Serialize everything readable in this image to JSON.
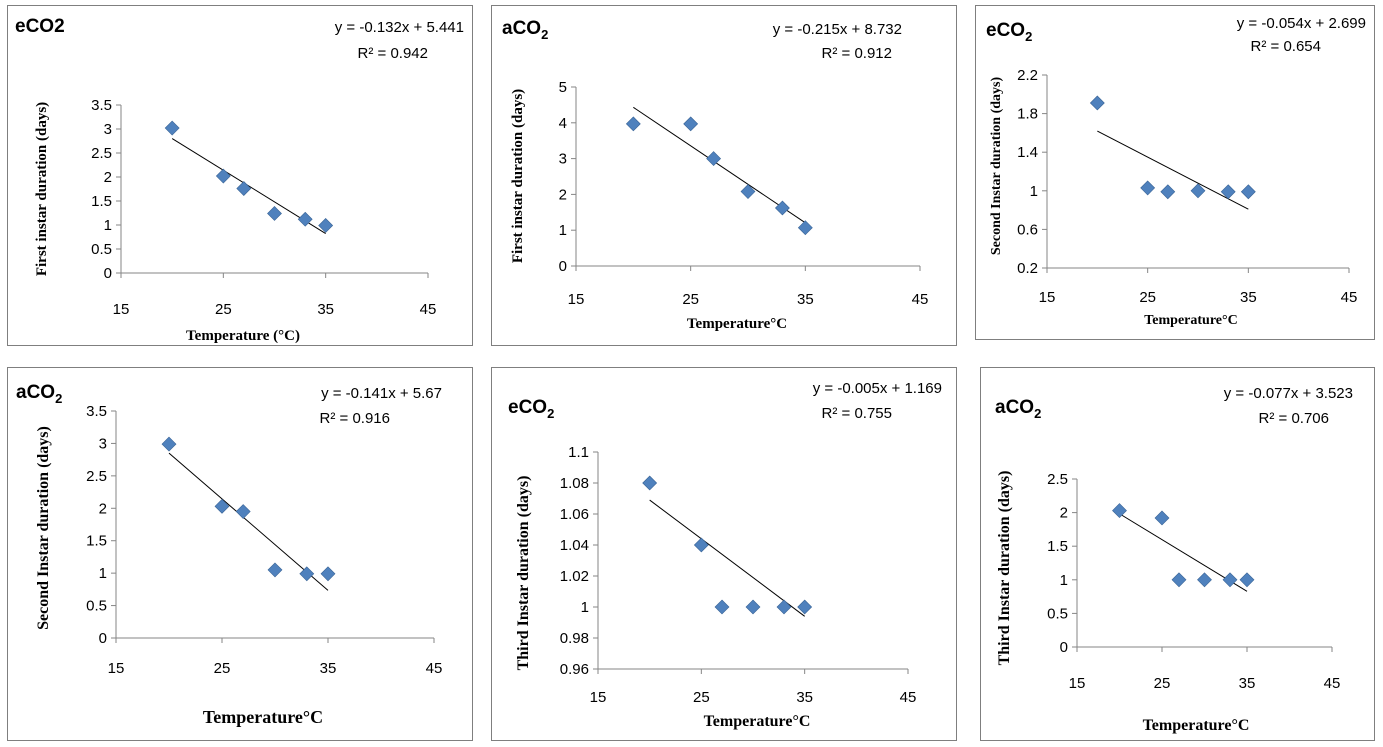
{
  "chart_data": [
    {
      "type": "scatter",
      "title": "eCO2",
      "title_sub": "",
      "equation": "y = -0.132x + 5.441",
      "r2_text": "R² = 0.942",
      "xlabel": "Temperature (°C)",
      "ylabel": "First instar duration (days)",
      "x_ticks": [
        "15",
        "25",
        "35",
        "45"
      ],
      "y_ticks": [
        "0",
        "0.5",
        "1",
        "1.5",
        "2",
        "2.5",
        "3",
        "3.5"
      ],
      "xlim": [
        15,
        45
      ],
      "ylim": [
        0,
        3.5
      ],
      "trend": {
        "slope": -0.132,
        "intercept": 5.441
      },
      "marker_color": "#4f81bd",
      "points": [
        {
          "x": 20,
          "y": 3.02
        },
        {
          "x": 25,
          "y": 2.02
        },
        {
          "x": 27,
          "y": 1.76
        },
        {
          "x": 30,
          "y": 1.24
        },
        {
          "x": 33,
          "y": 1.12
        },
        {
          "x": 35,
          "y": 0.99
        }
      ]
    },
    {
      "type": "scatter",
      "title": "aCO",
      "title_sub": "2",
      "equation": "y = -0.215x + 8.732",
      "r2_text": "R² = 0.912",
      "xlabel": "Temperature°C",
      "ylabel": "First instar duration (days)",
      "x_ticks": [
        "15",
        "25",
        "35",
        "45"
      ],
      "y_ticks": [
        "0",
        "1",
        "2",
        "3",
        "4",
        "5"
      ],
      "xlim": [
        15,
        45
      ],
      "ylim": [
        0,
        5
      ],
      "trend": {
        "slope": -0.215,
        "intercept": 8.732
      },
      "marker_color": "#4f81bd",
      "points": [
        {
          "x": 20,
          "y": 3.97
        },
        {
          "x": 25,
          "y": 3.97
        },
        {
          "x": 27,
          "y": 3.0
        },
        {
          "x": 30,
          "y": 2.08
        },
        {
          "x": 33,
          "y": 1.62
        },
        {
          "x": 35,
          "y": 1.07
        }
      ]
    },
    {
      "type": "scatter",
      "title": "eCO",
      "title_sub": "2",
      "equation": "y = -0.054x + 2.699",
      "r2_text": "R² = 0.654",
      "xlabel": "Temperature°C",
      "ylabel": "Second Instar duration (days)",
      "x_ticks": [
        "15",
        "25",
        "35",
        "45"
      ],
      "y_ticks": [
        "0.2",
        "0.6",
        "1",
        "1.4",
        "1.8",
        "2.2"
      ],
      "xlim": [
        15,
        45
      ],
      "ylim": [
        0.2,
        2.2
      ],
      "trend": {
        "slope": -0.054,
        "intercept": 2.699
      },
      "marker_color": "#4f81bd",
      "points": [
        {
          "x": 20,
          "y": 1.91
        },
        {
          "x": 25,
          "y": 1.03
        },
        {
          "x": 27,
          "y": 0.99
        },
        {
          "x": 30,
          "y": 1.0
        },
        {
          "x": 33,
          "y": 0.99
        },
        {
          "x": 35,
          "y": 0.99
        }
      ]
    },
    {
      "type": "scatter",
      "title": "aCO",
      "title_sub": "2",
      "equation": "y = -0.141x + 5.67",
      "r2_text": "R² = 0.916",
      "xlabel": "Temperature°C",
      "ylabel": "Second Instar duration (days)",
      "x_ticks": [
        "15",
        "25",
        "35",
        "45"
      ],
      "y_ticks": [
        "0",
        "0.5",
        "1",
        "1.5",
        "2",
        "2.5",
        "3",
        "3.5"
      ],
      "xlim": [
        15,
        45
      ],
      "ylim": [
        0,
        3.5
      ],
      "trend": {
        "slope": -0.141,
        "intercept": 5.67
      },
      "marker_color": "#4f81bd",
      "points": [
        {
          "x": 20,
          "y": 2.99
        },
        {
          "x": 25,
          "y": 2.03
        },
        {
          "x": 27,
          "y": 1.95
        },
        {
          "x": 30,
          "y": 1.05
        },
        {
          "x": 33,
          "y": 0.99
        },
        {
          "x": 35,
          "y": 0.99
        }
      ]
    },
    {
      "type": "scatter",
      "title": "eCO",
      "title_sub": "2",
      "equation": "y = -0.005x + 1.169",
      "r2_text": "R² = 0.755",
      "xlabel": "Temperature°C",
      "ylabel": "Third Instar duration (days)",
      "x_ticks": [
        "15",
        "25",
        "35",
        "45"
      ],
      "y_ticks": [
        "0.96",
        "0.98",
        "1",
        "1.02",
        "1.04",
        "1.06",
        "1.08",
        "1.1"
      ],
      "xlim": [
        15,
        45
      ],
      "ylim": [
        0.96,
        1.1
      ],
      "trend": {
        "slope": -0.005,
        "intercept": 1.169
      },
      "marker_color": "#4f81bd",
      "points": [
        {
          "x": 20,
          "y": 1.08
        },
        {
          "x": 25,
          "y": 1.04
        },
        {
          "x": 27,
          "y": 1.0
        },
        {
          "x": 30,
          "y": 1.0
        },
        {
          "x": 33,
          "y": 1.0
        },
        {
          "x": 35,
          "y": 1.0
        }
      ]
    },
    {
      "type": "scatter",
      "title": "aCO",
      "title_sub": "2",
      "equation": "y = -0.077x + 3.523",
      "r2_text": "R² = 0.706",
      "xlabel": "Temperature°C",
      "ylabel": "Third Instar duration (days)",
      "x_ticks": [
        "15",
        "25",
        "35",
        "45"
      ],
      "y_ticks": [
        "0",
        "0.5",
        "1",
        "1.5",
        "2",
        "2.5"
      ],
      "xlim": [
        15,
        45
      ],
      "ylim": [
        0,
        2.5
      ],
      "trend": {
        "slope": -0.077,
        "intercept": 3.523
      },
      "marker_color": "#4f81bd",
      "points": [
        {
          "x": 20,
          "y": 2.03
        },
        {
          "x": 25,
          "y": 1.92
        },
        {
          "x": 27,
          "y": 1.0
        },
        {
          "x": 30,
          "y": 1.0
        },
        {
          "x": 33,
          "y": 1.0
        },
        {
          "x": 35,
          "y": 1.0
        }
      ]
    }
  ]
}
